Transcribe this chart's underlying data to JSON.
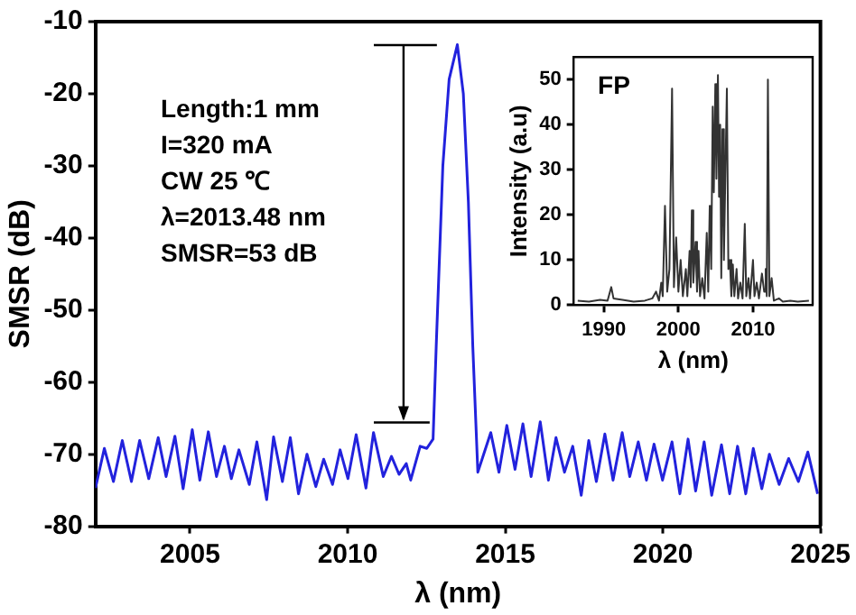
{
  "chart_data": [
    {
      "type": "line",
      "xlabel": "λ (nm)",
      "ylabel": "SMSR (dB)",
      "xlim": [
        2002,
        2025
      ],
      "xticks": [
        2005,
        2010,
        2015,
        2020,
        2025
      ],
      "ylim": [
        -80,
        -10
      ],
      "yticks": [
        -80,
        -70,
        -60,
        -50,
        -40,
        -30,
        -20,
        -10
      ],
      "marker": "none",
      "line_style": "solid",
      "annotations": [
        "Length:1 mm",
        "I=320 mA",
        "CW 25 ℃",
        "λ=2013.48 nm",
        "SMSR=53 dB"
      ],
      "series": [
        {
          "color": "#2222dd",
          "x": [
            2002.0,
            2002.28,
            2002.57,
            2002.85,
            2003.14,
            2003.4,
            2003.69,
            2003.99,
            2004.24,
            2004.52,
            2004.78,
            2005.07,
            2005.31,
            2005.58,
            2005.84,
            2006.09,
            2006.31,
            2006.55,
            2006.88,
            2007.12,
            2007.43,
            2007.65,
            2007.93,
            2008.18,
            2008.44,
            2008.71,
            2008.99,
            2009.24,
            2009.52,
            2009.76,
            2010.01,
            2010.27,
            2010.58,
            2010.82,
            2011.13,
            2011.39,
            2011.63,
            2011.86,
            2012.0,
            2012.3,
            2012.51,
            2012.71,
            2012.81,
            2013.02,
            2013.22,
            2013.48,
            2013.67,
            2013.83,
            2013.97,
            2014.13,
            2014.54,
            2014.8,
            2015.05,
            2015.31,
            2015.56,
            2015.82,
            2016.11,
            2016.37,
            2016.61,
            2016.88,
            2017.14,
            2017.41,
            2017.65,
            2017.89,
            2018.16,
            2018.42,
            2018.71,
            2018.95,
            2019.22,
            2019.48,
            2019.72,
            2019.99,
            2020.29,
            2020.54,
            2020.8,
            2021.04,
            2021.31,
            2021.55,
            2021.86,
            2022.12,
            2022.37,
            2022.63,
            2022.87,
            2023.14,
            2023.38,
            2023.69,
            2023.99,
            2024.3,
            2024.6,
            2024.91
          ],
          "values": [
            -74.7,
            -69.2,
            -73.8,
            -68.1,
            -73.8,
            -68.1,
            -73.4,
            -67.7,
            -73.1,
            -67.5,
            -74.8,
            -66.6,
            -73.6,
            -66.9,
            -73.1,
            -68.9,
            -73.4,
            -69.4,
            -74.2,
            -68.3,
            -76.3,
            -67.6,
            -73.8,
            -67.7,
            -75.5,
            -70.0,
            -74.5,
            -70.7,
            -74.2,
            -69.4,
            -73.4,
            -67.3,
            -74.7,
            -67.0,
            -73.1,
            -70.3,
            -72.8,
            -71.3,
            -73.6,
            -68.9,
            -69.2,
            -67.9,
            -55,
            -30,
            -18,
            -13.2,
            -20,
            -35,
            -55,
            -72.5,
            -67,
            -72.5,
            -66,
            -72.1,
            -65.8,
            -73.1,
            -65.5,
            -73.6,
            -67.7,
            -72.5,
            -68.9,
            -75.7,
            -68.1,
            -73.8,
            -67.2,
            -73.6,
            -67,
            -73.1,
            -68.3,
            -73.6,
            -68.6,
            -73.6,
            -68.3,
            -75.5,
            -67.9,
            -75.1,
            -68.3,
            -75.7,
            -68.7,
            -75.5,
            -68.9,
            -75.5,
            -69.2,
            -74.8,
            -70,
            -74.2,
            -70.6,
            -73.8,
            -69.7,
            -75.5
          ]
        }
      ]
    },
    {
      "type": "line",
      "xlabel": "λ (nm)",
      "ylabel": "Intensity (a.u)",
      "xlim": [
        1986,
        2018
      ],
      "xticks": [
        1990,
        2000,
        2010
      ],
      "ylim": [
        0,
        55
      ],
      "yticks": [
        0,
        10,
        20,
        30,
        40,
        50
      ],
      "marker": "none",
      "line_style": "solid",
      "annotations": [
        "FP"
      ],
      "series": [
        {
          "color": "#333333",
          "x": [
            1986.5,
            1988,
            1989.5,
            1990.5,
            1991,
            1991.3,
            1992.5,
            1994,
            1995.5,
            1996.5,
            1997,
            1997.4,
            1997.7,
            1997.9,
            1998.2,
            1998.5,
            1998.8,
            1999.15,
            1999.4,
            1999.7,
            2000,
            2000.3,
            2000.6,
            2001,
            2001.2,
            2001.5,
            2001.65,
            2001.8,
            2002.0,
            2002.3,
            2002.5,
            2002.7,
            2002.9,
            2003.2,
            2003.5,
            2003.8,
            2004,
            2004.2,
            2004.4,
            2004.6,
            2004.75,
            2004.95,
            2005.1,
            2005.3,
            2005.45,
            2005.6,
            2005.75,
            2005.9,
            2006.1,
            2006.5,
            2006.7,
            2006.9,
            2007.1,
            2007.3,
            2007.5,
            2007.8,
            2008,
            2008.3,
            2008.6,
            2008.9,
            2009.1,
            2009.4,
            2009.6,
            2010,
            2010.2,
            2010.5,
            2010.8,
            2011.2,
            2011.5,
            2011.7,
            2011.85,
            2012,
            2012.2,
            2012.5,
            2012.8,
            2013.5,
            2014,
            2015,
            2016,
            2017.5
          ],
          "values": [
            1,
            0.8,
            1.2,
            1,
            4,
            1.5,
            1.2,
            0.8,
            1,
            1.5,
            3,
            1,
            5,
            2,
            22,
            3,
            8,
            48,
            4,
            15,
            3,
            10,
            2,
            8,
            2,
            12,
            4,
            21,
            5,
            14,
            3,
            12,
            2,
            6,
            1.5,
            16,
            3,
            22,
            8,
            44,
            25,
            49,
            28,
            51,
            24,
            40,
            6,
            39,
            10,
            48,
            8,
            10,
            2,
            9,
            2,
            8,
            1.5,
            5,
            1.5,
            18,
            2,
            6,
            1.5,
            10,
            2,
            5,
            1.5,
            7,
            3,
            8,
            2,
            50,
            2,
            6,
            1,
            1.5,
            0.8,
            1,
            0.8,
            1
          ]
        }
      ]
    }
  ]
}
